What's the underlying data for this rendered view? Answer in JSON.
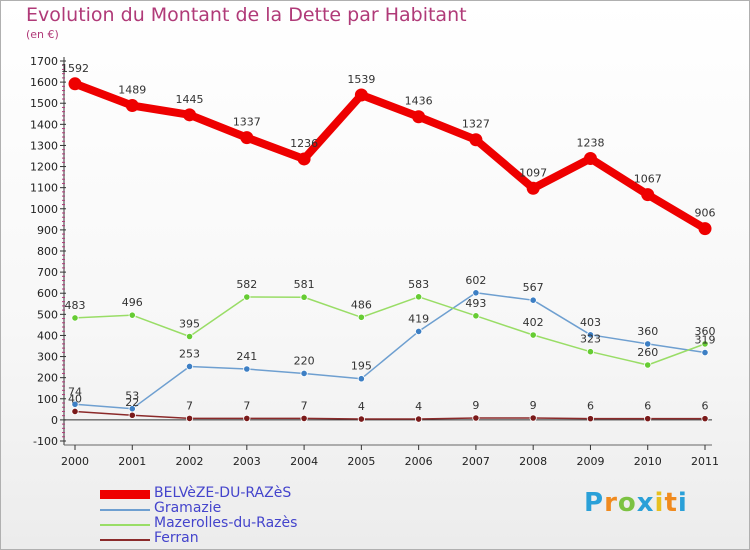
{
  "header": {
    "title": "Evolution du Montant de la Dette par Habitant",
    "subtitle": "(en €)"
  },
  "logo": {
    "letters": [
      "P",
      "r",
      "o",
      "x",
      "i",
      "t",
      "i"
    ],
    "colors": [
      "#2aa0d8",
      "#f08a1e",
      "#7cc242",
      "#2aa0d8",
      "#e8c020",
      "#f08a1e",
      "#2aa0d8"
    ]
  },
  "chart_data": {
    "type": "line",
    "title": "Evolution du Montant de la Dette par Habitant",
    "subtitle": "(en €)",
    "x": [
      "2000",
      "2001",
      "2002",
      "2003",
      "2004",
      "2005",
      "2006",
      "2007",
      "2008",
      "2009",
      "2010",
      "2011"
    ],
    "ylim": [
      -100,
      1700
    ],
    "yticks": [
      -100,
      0,
      100,
      200,
      300,
      400,
      500,
      600,
      700,
      800,
      900,
      1000,
      1100,
      1200,
      1300,
      1400,
      1500,
      1600,
      1700
    ],
    "grid": false,
    "legend_position": "bottom-left",
    "series": [
      {
        "name": "BELVèZE-DU-RAZèS",
        "color": "#ee0000",
        "dot": "#ee0000",
        "width": 8,
        "values": [
          1592,
          1489,
          1445,
          1337,
          1236,
          1539,
          1436,
          1327,
          1097,
          1238,
          1067,
          906
        ],
        "labels": [
          "1592",
          "1489",
          "1445",
          "1337",
          "1236",
          "1539",
          "1436",
          "1327",
          "1097",
          "1238",
          "1067",
          "906"
        ]
      },
      {
        "name": "Gramazie",
        "color": "#6e9fd0",
        "dot": "#3d7fc4",
        "width": 1.5,
        "values": [
          74,
          53,
          253,
          241,
          220,
          195,
          419,
          602,
          567,
          403,
          360,
          319
        ],
        "labels": [
          "74",
          "53",
          "253",
          "241",
          "220",
          "195",
          "419",
          "602",
          "567",
          "403",
          "360",
          "319"
        ]
      },
      {
        "name": "Mazerolles-du-Razès",
        "color": "#99dd66",
        "dot": "#66cc33",
        "width": 1.5,
        "values": [
          483,
          496,
          395,
          582,
          581,
          486,
          583,
          493,
          402,
          323,
          260,
          360
        ],
        "labels": [
          "483",
          "496",
          "395",
          "582",
          "581",
          "486",
          "583",
          "493",
          "402",
          "323",
          "260",
          "360"
        ]
      },
      {
        "name": "Ferran",
        "color": "#8b2a2a",
        "dot": "#7a1a1a",
        "width": 1.5,
        "values": [
          40,
          22,
          7,
          7,
          7,
          4,
          4,
          9,
          9,
          6,
          6,
          6
        ],
        "labels": [
          "40",
          "22",
          "7",
          "7",
          "7",
          "4",
          "4",
          "9",
          "9",
          "6",
          "6",
          "6"
        ]
      }
    ]
  }
}
